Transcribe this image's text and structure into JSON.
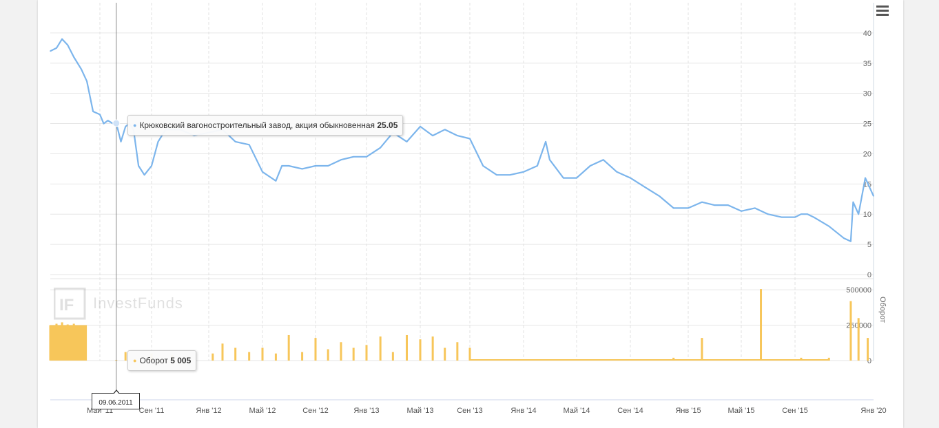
{
  "menu": {
    "icon": "hamburger-menu-icon"
  },
  "watermark": {
    "text": "InvestFunds",
    "logo_letters": "IF"
  },
  "tooltip_price": {
    "series_name": "Крюковский вагоностроительный завод, акция обыкновенная",
    "value": "25.05"
  },
  "tooltip_volume": {
    "series_name": "Оборот",
    "value": "5 005"
  },
  "crosshair_date": "09.06.2011",
  "colors": {
    "price_line": "#7cb5ec",
    "volume": "#f7c65a",
    "grid": "#e6e6e6",
    "background": "#ffffff"
  },
  "chart_data": {
    "type": "line",
    "x_range": [
      "2011-02-10",
      "2020-01-01"
    ],
    "x_ticks": [
      "Май '11",
      "Сен '11",
      "Янв '12",
      "Май '12",
      "Сен '12",
      "Янв '13",
      "Май '13",
      "Сен '13",
      "Янв '14",
      "Май '14",
      "Сен '14",
      "Янв '15",
      "Май '15",
      "Сен '15",
      "Янв '20"
    ],
    "price_axis": {
      "ticks": [
        "0",
        "5",
        "10",
        "15",
        "20",
        "25",
        "30",
        "35",
        "40"
      ],
      "ylim": [
        0,
        45
      ]
    },
    "volume_axis": {
      "label": "Оборот",
      "ticks": [
        "0",
        "250000",
        "500000"
      ],
      "ylim": [
        0,
        520000
      ]
    },
    "series": [
      {
        "name": "Крюковский вагоностроительный завод, акция обыкновенная",
        "type": "line",
        "x": [
          "2011-02-10",
          "2011-02-20",
          "2011-03-01",
          "2011-03-10",
          "2011-03-20",
          "2011-04-01",
          "2011-04-10",
          "2011-04-20",
          "2011-05-01",
          "2011-05-10",
          "2011-05-20",
          "2011-06-01",
          "2011-06-09",
          "2011-06-20",
          "2011-07-01",
          "2011-07-10",
          "2011-07-20",
          "2011-08-01",
          "2011-08-15",
          "2011-09-01",
          "2011-09-15",
          "2011-10-01",
          "2011-11-01",
          "2011-12-01",
          "2012-01-01",
          "2012-02-01",
          "2012-03-01",
          "2012-04-01",
          "2012-05-01",
          "2012-06-01",
          "2012-06-15",
          "2012-07-01",
          "2012-08-01",
          "2012-09-01",
          "2012-10-01",
          "2012-11-01",
          "2012-12-01",
          "2013-01-01",
          "2013-02-01",
          "2013-03-01",
          "2013-04-01",
          "2013-05-01",
          "2013-06-01",
          "2013-07-01",
          "2013-08-01",
          "2013-09-01",
          "2013-10-01",
          "2013-11-01",
          "2013-12-01",
          "2014-01-01",
          "2014-02-01",
          "2014-02-20",
          "2014-03-01",
          "2014-04-01",
          "2014-05-01",
          "2014-06-01",
          "2014-07-01",
          "2014-08-01",
          "2014-09-01",
          "2014-10-01",
          "2014-11-01",
          "2014-12-01",
          "2015-01-01",
          "2015-02-01",
          "2015-03-01",
          "2015-04-01",
          "2015-05-01",
          "2015-06-01",
          "2015-07-01",
          "2015-08-01",
          "2015-09-01",
          "2015-10-01",
          "2015-11-01",
          "2015-12-01",
          "2019-10-01",
          "2019-11-01",
          "2019-11-15",
          "2019-11-20",
          "2019-12-01",
          "2019-12-15",
          "2020-01-01"
        ],
        "y": [
          37,
          37.5,
          39,
          38,
          36,
          34,
          32,
          27,
          26.5,
          25,
          25.5,
          25,
          25.05,
          22,
          24.5,
          25,
          24,
          18,
          16.5,
          18,
          22,
          24,
          24,
          23,
          23.5,
          24,
          22,
          21.5,
          17,
          15.5,
          18,
          18,
          17.5,
          18,
          18,
          19,
          19.5,
          19.5,
          21,
          23.5,
          22,
          24.5,
          23,
          24,
          23,
          22.5,
          18,
          16.5,
          16.5,
          17,
          18,
          22,
          19,
          16,
          16,
          18,
          19,
          17,
          16,
          14.5,
          13,
          11,
          11,
          12,
          11.5,
          11.5,
          10.5,
          11,
          10,
          9.5,
          9.5,
          10,
          10,
          9.5,
          8,
          6,
          5.5,
          12,
          10,
          16,
          13
        ]
      },
      {
        "name": "Оборот",
        "type": "column",
        "x": [
          "2011-02-10",
          "2011-02-20",
          "2011-03-01",
          "2011-03-10",
          "2011-03-20",
          "2011-04-01",
          "2011-06-09",
          "2011-07-01",
          "2011-09-01",
          "2011-10-15",
          "2012-01-10",
          "2012-02-01",
          "2012-03-01",
          "2012-04-01",
          "2012-05-01",
          "2012-06-01",
          "2012-07-01",
          "2012-08-01",
          "2012-09-01",
          "2012-10-01",
          "2012-11-01",
          "2012-12-01",
          "2013-01-01",
          "2013-02-01",
          "2013-03-01",
          "2013-04-01",
          "2013-05-01",
          "2013-06-01",
          "2013-07-01",
          "2013-08-01",
          "2013-09-01",
          "2014-12-01",
          "2015-02-01",
          "2015-06-15",
          "2015-10-01",
          "2019-10-01",
          "2019-11-15",
          "2019-12-01",
          "2019-12-20"
        ],
        "values": [
          250000,
          260000,
          270000,
          255000,
          260000,
          240000,
          5005,
          60000,
          50000,
          40000,
          50000,
          120000,
          90000,
          60000,
          90000,
          50000,
          180000,
          60000,
          160000,
          80000,
          130000,
          90000,
          110000,
          170000,
          60000,
          180000,
          150000,
          170000,
          90000,
          130000,
          90000,
          20000,
          160000,
          505000,
          20000,
          20000,
          420000,
          300000,
          160000
        ]
      }
    ]
  }
}
